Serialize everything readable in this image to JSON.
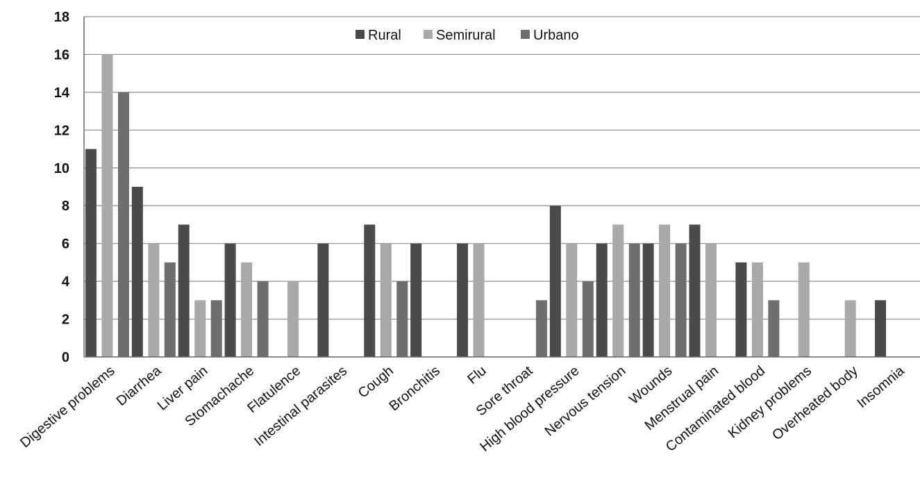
{
  "chart_data": {
    "type": "bar",
    "categories": [
      "Digestive problems",
      "Diarrhea",
      "Liver pain",
      "Stomachache",
      "Flatulence",
      "Intestinal parasites",
      "Cough",
      "Bronchitis",
      "Flu",
      "Sore throat",
      "High blood pressure",
      "Nervous tension",
      "Wounds",
      "Menstrual pain",
      "Contaminated blood",
      "Kidney problems",
      "Overheated body",
      "Insomnia"
    ],
    "series": [
      {
        "name": "Rural",
        "color": "#4a4a4a",
        "values": [
          11,
          9,
          7,
          6,
          0,
          6,
          7,
          6,
          6,
          0,
          8,
          6,
          6,
          7,
          5,
          0,
          0,
          3
        ]
      },
      {
        "name": "Semirural",
        "color": "#a9a9a9",
        "values": [
          16,
          6,
          3,
          5,
          4,
          0,
          6,
          0,
          6,
          0,
          6,
          7,
          7,
          6,
          5,
          5,
          3,
          0
        ]
      },
      {
        "name": "Urbano",
        "color": "#6e6e6e",
        "values": [
          14,
          5,
          3,
          4,
          0,
          0,
          4,
          0,
          0,
          3,
          4,
          6,
          6,
          0,
          3,
          0,
          0,
          0
        ]
      }
    ],
    "yticks": [
      "0",
      "2",
      "4",
      "6",
      "8",
      "10",
      "12",
      "14",
      "16",
      "18"
    ],
    "ylim": [
      0,
      18
    ],
    "grid": true,
    "legend": "top-center"
  }
}
